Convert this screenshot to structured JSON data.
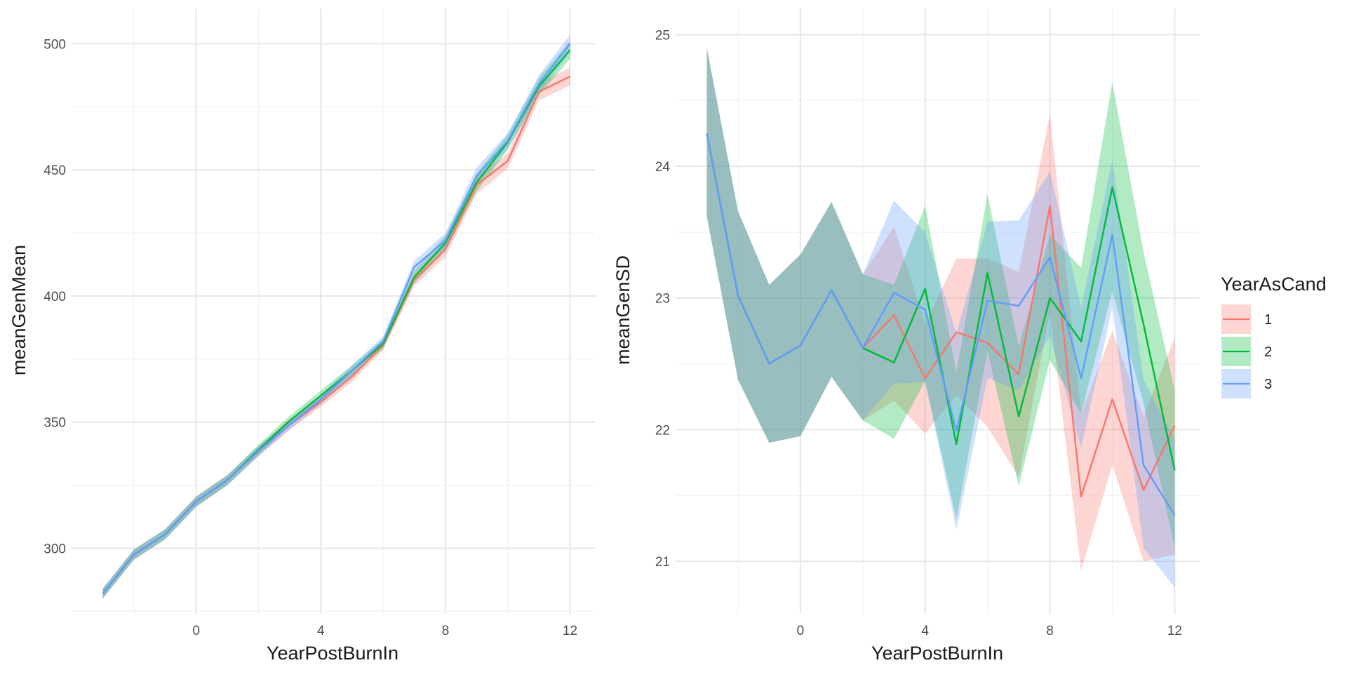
{
  "colors": {
    "s1": "#F8766D",
    "s2": "#00BA38",
    "s3": "#619CFF",
    "panel_bg": "#ffffff",
    "grid_major": "#e6e6e6",
    "grid_minor": "#f2f2f2"
  },
  "legend": {
    "title": "YearAsCand",
    "items": [
      {
        "label": "1",
        "color": "#F8766D"
      },
      {
        "label": "2",
        "color": "#00BA38"
      },
      {
        "label": "3",
        "color": "#619CFF"
      }
    ]
  },
  "chart_data": [
    {
      "type": "line",
      "xlabel": "YearPostBurnIn",
      "ylabel": "meanGenMean",
      "xlim": [
        -4,
        12.8
      ],
      "ylim": [
        274,
        514
      ],
      "x_ticks": [
        0,
        4,
        8,
        12
      ],
      "y_ticks": [
        300,
        350,
        400,
        450,
        500
      ],
      "grid": true,
      "ribbons": true,
      "series": [
        {
          "name": "1",
          "color": "#F8766D",
          "x": [
            -3,
            -2,
            -1,
            0,
            1,
            2,
            3,
            4,
            5,
            6,
            7,
            8,
            9,
            10,
            11,
            12
          ],
          "y": [
            282,
            297.5,
            305.5,
            318.5,
            327,
            338.5,
            349,
            358,
            368,
            380.5,
            406.5,
            418.5,
            444,
            453.5,
            481,
            487
          ],
          "ci": [
            2,
            2,
            2,
            2,
            2,
            2,
            2,
            2,
            2,
            2,
            2.5,
            3,
            3.5,
            3,
            3.5,
            3.5
          ]
        },
        {
          "name": "2",
          "color": "#00BA38",
          "x": [
            -3,
            -2,
            -1,
            0,
            1,
            2,
            3,
            4,
            5,
            6,
            7,
            8,
            9,
            10,
            11,
            12
          ],
          "y": [
            282,
            297.5,
            305.5,
            318.5,
            327,
            339,
            350.5,
            360.5,
            370.5,
            381,
            407.5,
            421,
            445,
            461,
            483,
            497.5
          ],
          "ci": [
            2,
            2,
            2,
            2,
            2,
            2,
            2,
            2,
            2,
            2,
            2.5,
            3,
            3.5,
            3,
            3.5,
            3.5
          ]
        },
        {
          "name": "3",
          "color": "#619CFF",
          "x": [
            -3,
            -2,
            -1,
            0,
            1,
            2,
            3,
            4,
            5,
            6,
            7,
            8,
            9,
            10,
            11,
            12
          ],
          "y": [
            282,
            297.5,
            305.5,
            318.5,
            327,
            338.5,
            349,
            359,
            370.5,
            382,
            411.5,
            422,
            447.5,
            461.5,
            484,
            500
          ],
          "ci": [
            2,
            2,
            2,
            2,
            2,
            2,
            2,
            2,
            2,
            2,
            2.5,
            3,
            3.5,
            3,
            3.5,
            3.5
          ]
        }
      ]
    },
    {
      "type": "line",
      "xlabel": "YearPostBurnIn",
      "ylabel": "meanGenSD",
      "xlim": [
        -4,
        12.8
      ],
      "ylim": [
        20.6,
        25.2
      ],
      "x_ticks": [
        0,
        4,
        8,
        12
      ],
      "y_ticks": [
        21,
        22,
        23,
        24,
        25
      ],
      "grid": true,
      "ribbons": true,
      "series": [
        {
          "name": "1",
          "color": "#F8766D",
          "x": [
            -3,
            -2,
            -1,
            0,
            1,
            2,
            3,
            4,
            5,
            6,
            7,
            8,
            9,
            10,
            11,
            12
          ],
          "y": [
            24.25,
            23.02,
            22.5,
            22.64,
            23.06,
            22.62,
            22.87,
            22.39,
            22.74,
            22.66,
            22.42,
            23.7,
            21.49,
            22.23,
            21.54,
            22.03
          ],
          "lo": [
            23.62,
            22.38,
            21.9,
            21.95,
            22.4,
            22.07,
            22.22,
            21.97,
            22.26,
            22.02,
            21.64,
            22.9,
            20.93,
            21.73,
            21.0,
            21.05
          ],
          "hi": [
            24.9,
            23.66,
            23.1,
            23.33,
            23.73,
            23.18,
            23.54,
            22.8,
            23.3,
            23.3,
            23.2,
            24.4,
            22.12,
            22.75,
            22.1,
            22.7
          ]
        },
        {
          "name": "2",
          "color": "#00BA38",
          "x": [
            -3,
            -2,
            -1,
            0,
            1,
            2,
            3,
            4,
            5,
            6,
            7,
            8,
            9,
            10,
            11,
            12
          ],
          "y": [
            24.25,
            23.02,
            22.5,
            22.64,
            23.06,
            22.62,
            22.51,
            23.07,
            21.89,
            23.19,
            22.1,
            23.0,
            22.67,
            23.84,
            22.8,
            21.69
          ],
          "lo": [
            23.62,
            22.38,
            21.9,
            21.95,
            22.4,
            22.07,
            21.93,
            22.37,
            21.32,
            22.6,
            21.57,
            22.53,
            22.12,
            23.05,
            22.2,
            21.1
          ],
          "hi": [
            24.9,
            23.66,
            23.1,
            23.33,
            23.73,
            23.18,
            23.1,
            23.7,
            22.43,
            23.79,
            22.63,
            23.48,
            23.23,
            24.64,
            23.35,
            22.3
          ]
        },
        {
          "name": "3",
          "color": "#619CFF",
          "x": [
            -3,
            -2,
            -1,
            0,
            1,
            2,
            3,
            4,
            5,
            6,
            7,
            8,
            9,
            10,
            11,
            12
          ],
          "y": [
            24.25,
            23.02,
            22.5,
            22.64,
            23.06,
            22.62,
            23.04,
            22.91,
            21.99,
            22.98,
            22.94,
            23.31,
            22.39,
            23.48,
            21.73,
            21.35
          ],
          "lo": [
            23.62,
            22.38,
            21.9,
            21.95,
            22.4,
            22.07,
            22.35,
            22.36,
            21.24,
            22.39,
            22.3,
            22.71,
            21.86,
            22.93,
            21.1,
            20.8
          ],
          "hi": [
            24.9,
            23.66,
            23.1,
            23.33,
            23.73,
            23.18,
            23.74,
            23.5,
            22.73,
            23.58,
            23.59,
            23.96,
            22.93,
            24.05,
            22.38,
            21.92
          ]
        }
      ]
    }
  ]
}
